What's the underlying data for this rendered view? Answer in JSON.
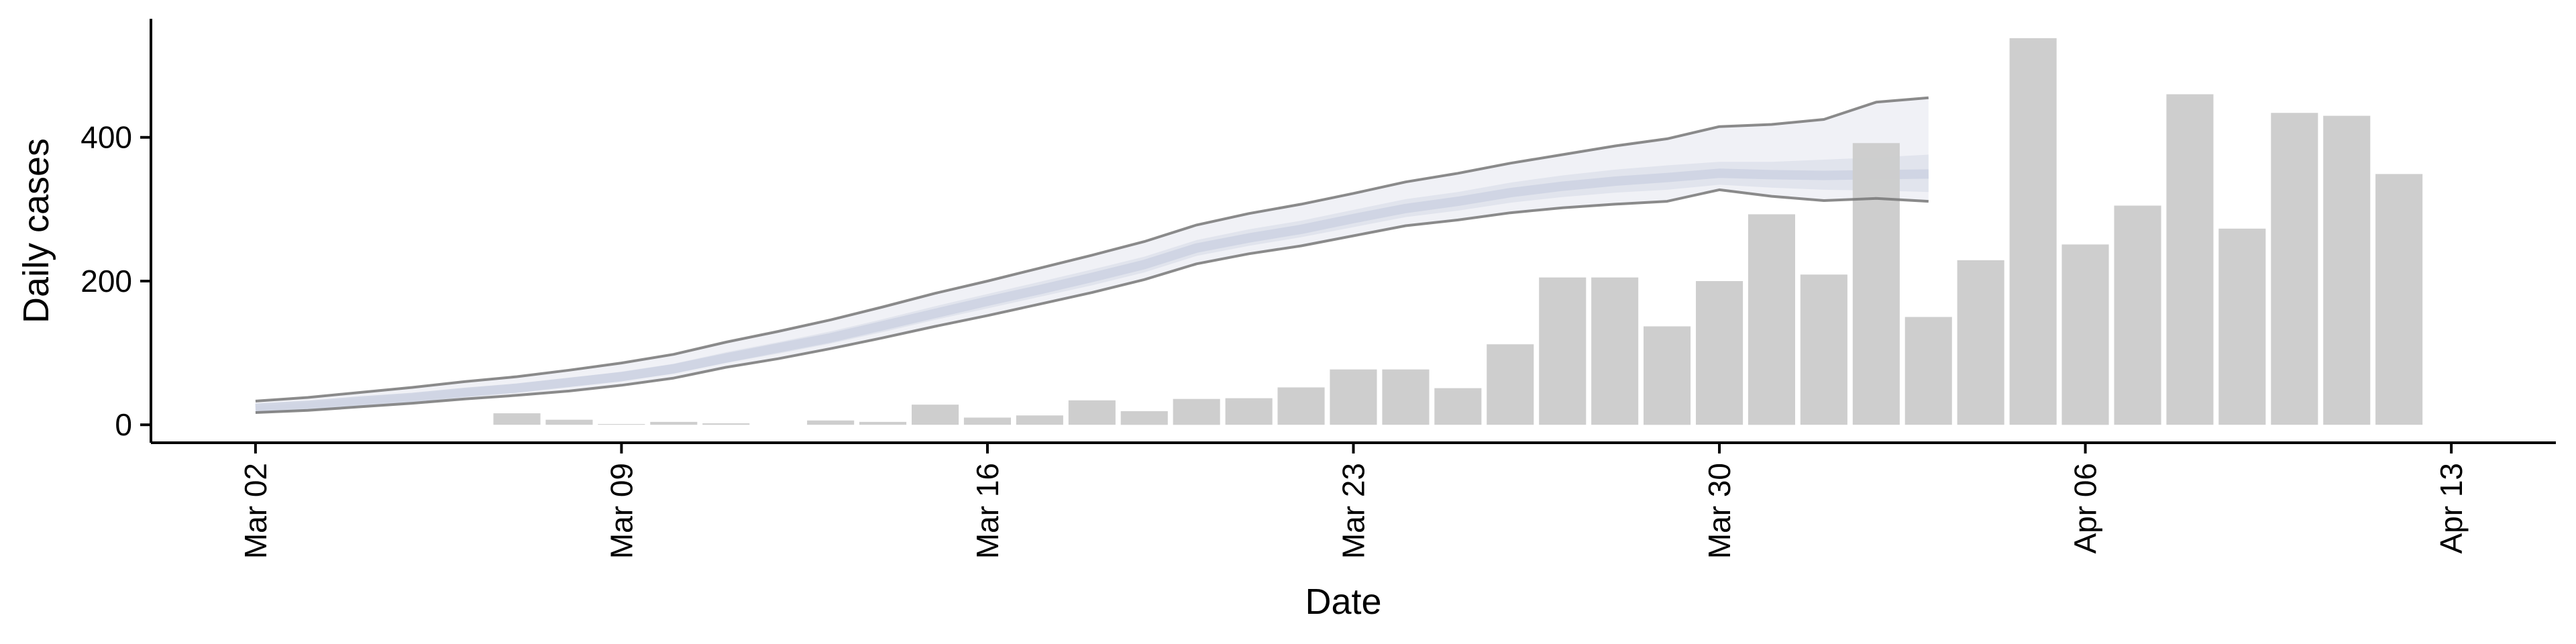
{
  "chart_data": {
    "type": "bar",
    "title": "",
    "xlabel": "Date",
    "ylabel": "Daily cases",
    "x_axis": {
      "range": [
        "2020-02-29",
        "2020-04-15"
      ],
      "ticks": [
        {
          "date": "2020-03-02",
          "label": "Mar 02"
        },
        {
          "date": "2020-03-09",
          "label": "Mar 09"
        },
        {
          "date": "2020-03-16",
          "label": "Mar 16"
        },
        {
          "date": "2020-03-23",
          "label": "Mar 23"
        },
        {
          "date": "2020-03-30",
          "label": "Mar 30"
        },
        {
          "date": "2020-04-06",
          "label": "Apr 06"
        },
        {
          "date": "2020-04-13",
          "label": "Apr 13"
        }
      ]
    },
    "y_axis": {
      "range": [
        -25,
        565
      ],
      "ticks": [
        {
          "value": 0,
          "label": "0"
        },
        {
          "value": 200,
          "label": "200"
        },
        {
          "value": 400,
          "label": "400"
        }
      ]
    },
    "grid": false,
    "legend": "none",
    "colors": {
      "bars": "#cccccc",
      "band_outer": "#eeeff5",
      "band_inner": "#dfe2ec",
      "median": "#ccd2e2",
      "bound_lines": "#777777",
      "axis": "#000000"
    },
    "bars": [
      {
        "date": "2020-03-07",
        "value": 16
      },
      {
        "date": "2020-03-08",
        "value": 7
      },
      {
        "date": "2020-03-09",
        "value": 1
      },
      {
        "date": "2020-03-10",
        "value": 4
      },
      {
        "date": "2020-03-11",
        "value": 2
      },
      {
        "date": "2020-03-13",
        "value": 6
      },
      {
        "date": "2020-03-14",
        "value": 4
      },
      {
        "date": "2020-03-15",
        "value": 28
      },
      {
        "date": "2020-03-16",
        "value": 10
      },
      {
        "date": "2020-03-17",
        "value": 13
      },
      {
        "date": "2020-03-18",
        "value": 34
      },
      {
        "date": "2020-03-19",
        "value": 19
      },
      {
        "date": "2020-03-20",
        "value": 36
      },
      {
        "date": "2020-03-21",
        "value": 37
      },
      {
        "date": "2020-03-22",
        "value": 52
      },
      {
        "date": "2020-03-23",
        "value": 77
      },
      {
        "date": "2020-03-24",
        "value": 77
      },
      {
        "date": "2020-03-25",
        "value": 51
      },
      {
        "date": "2020-03-26",
        "value": 112
      },
      {
        "date": "2020-03-27",
        "value": 205
      },
      {
        "date": "2020-03-28",
        "value": 205
      },
      {
        "date": "2020-03-29",
        "value": 137
      },
      {
        "date": "2020-03-30",
        "value": 200
      },
      {
        "date": "2020-03-31",
        "value": 293
      },
      {
        "date": "2020-04-01",
        "value": 209
      },
      {
        "date": "2020-04-02",
        "value": 392
      },
      {
        "date": "2020-04-03",
        "value": 150
      },
      {
        "date": "2020-04-04",
        "value": 229
      },
      {
        "date": "2020-04-05",
        "value": 538
      },
      {
        "date": "2020-04-06",
        "value": 251
      },
      {
        "date": "2020-04-07",
        "value": 305
      },
      {
        "date": "2020-04-08",
        "value": 460
      },
      {
        "date": "2020-04-09",
        "value": 273
      },
      {
        "date": "2020-04-10",
        "value": 434
      },
      {
        "date": "2020-04-11",
        "value": 430
      },
      {
        "date": "2020-04-12",
        "value": 349
      }
    ],
    "estimate_band": [
      {
        "date": "2020-03-02",
        "lower": 17,
        "inner_lower": 20,
        "median": 23,
        "inner_upper": 26,
        "upper": 33
      },
      {
        "date": "2020-03-03",
        "lower": 20,
        "inner_lower": 24,
        "median": 27,
        "inner_upper": 31,
        "upper": 38
      },
      {
        "date": "2020-03-04",
        "lower": 25,
        "inner_lower": 29,
        "median": 33,
        "inner_upper": 37,
        "upper": 45
      },
      {
        "date": "2020-03-05",
        "lower": 30,
        "inner_lower": 34,
        "median": 38,
        "inner_upper": 43,
        "upper": 52
      },
      {
        "date": "2020-03-06",
        "lower": 36,
        "inner_lower": 40,
        "median": 45,
        "inner_upper": 50,
        "upper": 60
      },
      {
        "date": "2020-03-07",
        "lower": 41,
        "inner_lower": 46,
        "median": 51,
        "inner_upper": 57,
        "upper": 67
      },
      {
        "date": "2020-03-08",
        "lower": 47,
        "inner_lower": 53,
        "median": 59,
        "inner_upper": 65,
        "upper": 76
      },
      {
        "date": "2020-03-09",
        "lower": 55,
        "inner_lower": 61,
        "median": 67,
        "inner_upper": 74,
        "upper": 86
      },
      {
        "date": "2020-03-10",
        "lower": 65,
        "inner_lower": 71,
        "median": 78,
        "inner_upper": 85,
        "upper": 98
      },
      {
        "date": "2020-03-11",
        "lower": 80,
        "inner_lower": 86,
        "median": 93,
        "inner_upper": 101,
        "upper": 115
      },
      {
        "date": "2020-03-12",
        "lower": 92,
        "inner_lower": 99,
        "median": 107,
        "inner_upper": 115,
        "upper": 130
      },
      {
        "date": "2020-03-13",
        "lower": 106,
        "inner_lower": 113,
        "median": 121,
        "inner_upper": 130,
        "upper": 146
      },
      {
        "date": "2020-03-14",
        "lower": 121,
        "inner_lower": 129,
        "median": 138,
        "inner_upper": 147,
        "upper": 164
      },
      {
        "date": "2020-03-15",
        "lower": 137,
        "inner_lower": 146,
        "median": 155,
        "inner_upper": 165,
        "upper": 183
      },
      {
        "date": "2020-03-16",
        "lower": 152,
        "inner_lower": 162,
        "median": 172,
        "inner_upper": 182,
        "upper": 200
      },
      {
        "date": "2020-03-17",
        "lower": 168,
        "inner_lower": 178,
        "median": 188,
        "inner_upper": 199,
        "upper": 218
      },
      {
        "date": "2020-03-18",
        "lower": 184,
        "inner_lower": 194,
        "median": 205,
        "inner_upper": 216,
        "upper": 236
      },
      {
        "date": "2020-03-19",
        "lower": 202,
        "inner_lower": 212,
        "median": 223,
        "inner_upper": 234,
        "upper": 255
      },
      {
        "date": "2020-03-20",
        "lower": 224,
        "inner_lower": 235,
        "median": 246,
        "inner_upper": 257,
        "upper": 278
      },
      {
        "date": "2020-03-21",
        "lower": 238,
        "inner_lower": 249,
        "median": 260,
        "inner_upper": 272,
        "upper": 294
      },
      {
        "date": "2020-03-22",
        "lower": 249,
        "inner_lower": 261,
        "median": 272,
        "inner_upper": 284,
        "upper": 307
      },
      {
        "date": "2020-03-23",
        "lower": 263,
        "inner_lower": 275,
        "median": 287,
        "inner_upper": 299,
        "upper": 322
      },
      {
        "date": "2020-03-24",
        "lower": 277,
        "inner_lower": 289,
        "median": 301,
        "inner_upper": 314,
        "upper": 338
      },
      {
        "date": "2020-03-25",
        "lower": 285,
        "inner_lower": 298,
        "median": 311,
        "inner_upper": 324,
        "upper": 350
      },
      {
        "date": "2020-03-26",
        "lower": 295,
        "inner_lower": 309,
        "median": 323,
        "inner_upper": 337,
        "upper": 364
      },
      {
        "date": "2020-03-27",
        "lower": 302,
        "inner_lower": 317,
        "median": 332,
        "inner_upper": 347,
        "upper": 376
      },
      {
        "date": "2020-03-28",
        "lower": 307,
        "inner_lower": 323,
        "median": 339,
        "inner_upper": 355,
        "upper": 388
      },
      {
        "date": "2020-03-29",
        "lower": 311,
        "inner_lower": 327,
        "median": 344,
        "inner_upper": 361,
        "upper": 398
      },
      {
        "date": "2020-03-30",
        "lower": 327,
        "inner_lower": 334,
        "median": 350,
        "inner_upper": 366,
        "upper": 415
      },
      {
        "date": "2020-03-31",
        "lower": 318,
        "inner_lower": 330,
        "median": 348,
        "inner_upper": 366,
        "upper": 418
      },
      {
        "date": "2020-04-01",
        "lower": 312,
        "inner_lower": 327,
        "median": 347,
        "inner_upper": 369,
        "upper": 425
      },
      {
        "date": "2020-04-02",
        "lower": 315,
        "inner_lower": 326,
        "median": 348,
        "inner_upper": 372,
        "upper": 449
      },
      {
        "date": "2020-04-03",
        "lower": 311,
        "inner_lower": 324,
        "median": 349,
        "inner_upper": 376,
        "upper": 455
      }
    ]
  }
}
